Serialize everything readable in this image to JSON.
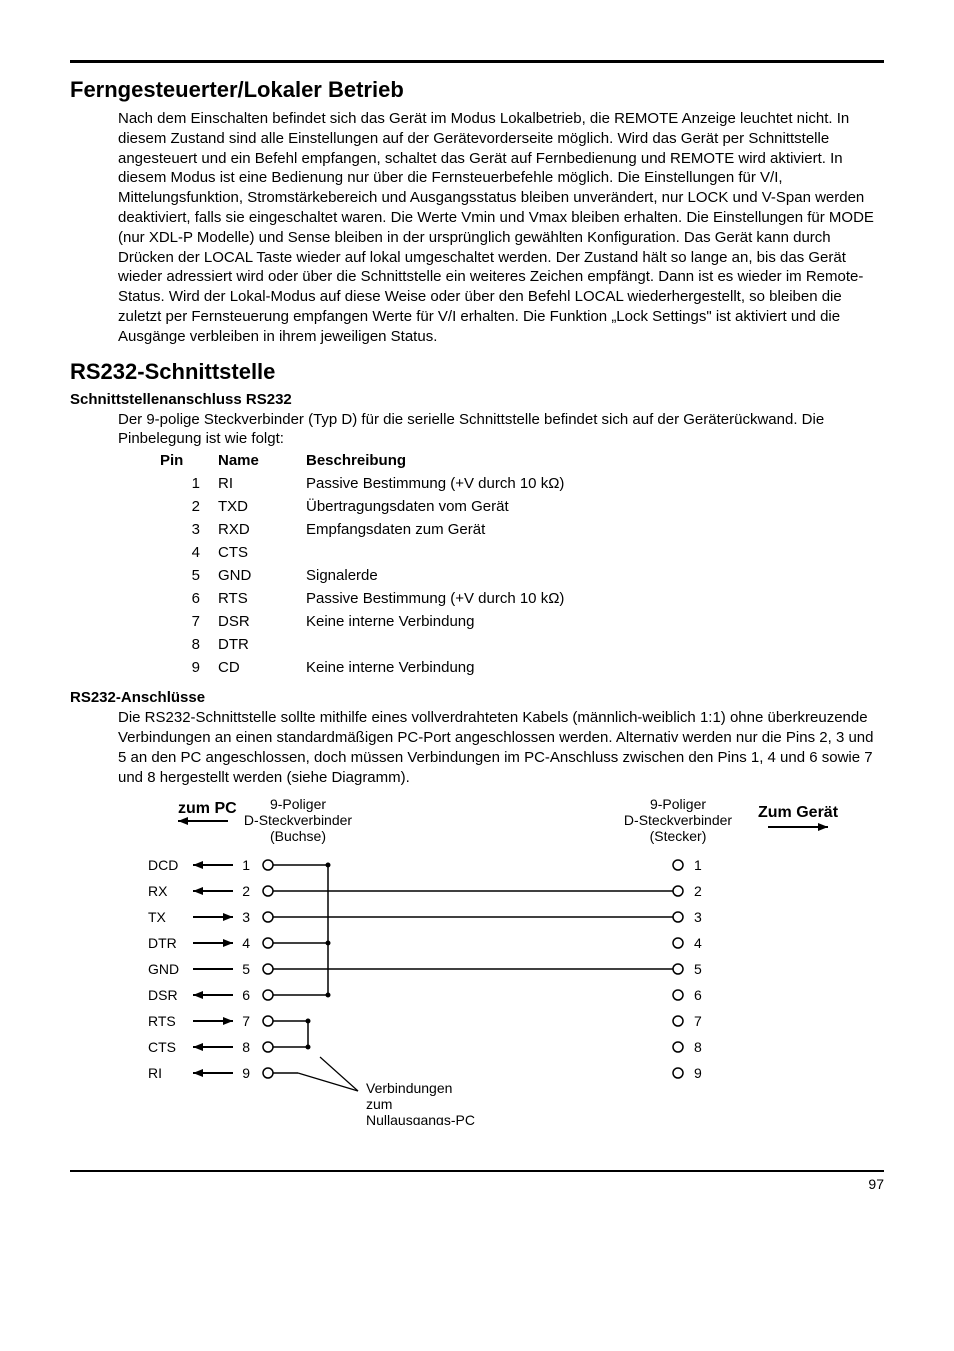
{
  "page": {
    "number": "97"
  },
  "section1": {
    "title": "Ferngesteuerter/Lokaler Betrieb",
    "body": "Nach dem Einschalten befindet sich das Gerät im Modus Lokalbetrieb, die REMOTE Anzeige leuchtet nicht. In diesem Zustand sind alle Einstellungen auf der Gerätevorderseite möglich. Wird das Gerät per Schnittstelle angesteuert und ein Befehl empfangen, schaltet das Gerät auf Fernbedienung und REMOTE wird aktiviert. In diesem Modus ist eine Bedienung nur über die Fernsteuerbefehle möglich. Die Einstellungen für V/I, Mittelungsfunktion, Stromstärkebereich und Ausgangsstatus bleiben unverändert, nur LOCK und V-Span werden deaktiviert, falls sie eingeschaltet waren. Die Werte Vmin und Vmax bleiben erhalten. Die Einstellungen für MODE (nur XDL-P Modelle) und Sense bleiben in der ursprünglich gewählten Konfiguration. Das Gerät kann durch Drücken der LOCAL Taste wieder auf lokal umgeschaltet werden. Der Zustand hält so lange an, bis das Gerät wieder adressiert wird oder über die Schnittstelle ein weiteres Zeichen empfängt. Dann ist es wieder im Remote-Status. Wird der Lokal-Modus auf diese Weise oder über den Befehl LOCAL wiederhergestellt, so bleiben die zuletzt per Fernsteuerung empfangen Werte für V/I erhalten. Die Funktion „Lock Settings\" ist aktiviert und die Ausgänge verbleiben in ihrem jeweiligen Status."
  },
  "section2": {
    "title": "RS232-Schnittstelle",
    "sub1": {
      "heading": "Schnittstellenanschluss RS232",
      "body": "Der 9-polige Steckverbinder (Typ D) für die serielle Schnittstelle befindet sich auf der Geräterückwand. Die Pinbelegung ist wie folgt:"
    },
    "pinTable": {
      "headers": {
        "pin": "Pin",
        "name": "Name",
        "desc": "Beschreibung"
      },
      "rows": [
        {
          "pin": "1",
          "name": "RI",
          "desc": "Passive Bestimmung (+V durch 10 kΩ)"
        },
        {
          "pin": "2",
          "name": "TXD",
          "desc": "Übertragungsdaten vom Gerät"
        },
        {
          "pin": "3",
          "name": "RXD",
          "desc": "Empfangsdaten zum Gerät"
        },
        {
          "pin": "4",
          "name": "CTS",
          "desc": ""
        },
        {
          "pin": "5",
          "name": "GND",
          "desc": "Signalerde"
        },
        {
          "pin": "6",
          "name": "RTS",
          "desc": "Passive Bestimmung (+V durch 10 kΩ)"
        },
        {
          "pin": "7",
          "name": "DSR",
          "desc": "Keine interne Verbindung"
        },
        {
          "pin": "8",
          "name": "DTR",
          "desc": ""
        },
        {
          "pin": "9",
          "name": "CD",
          "desc": "Keine interne Verbindung"
        }
      ]
    },
    "sub2": {
      "heading": "RS232-Anschlüsse",
      "body": "Die RS232-Schnittstelle sollte mithilfe eines vollverdrahteten Kabels (männlich-weiblich 1:1) ohne überkreuzende Verbindungen an einen standardmäßigen PC-Port angeschlossen werden. Alternativ werden nur die Pins 2, 3 und 5 an den PC angeschlossen, doch müssen Verbindungen im PC-Anschluss zwischen den Pins 1, 4 und 6 sowie 7 und 8 hergestellt werden (siehe Diagramm)."
    }
  },
  "diagram": {
    "left": {
      "title": "zum PC",
      "sub1": "9-Poliger",
      "sub2": "D-Steckverbinder",
      "sub3": "(Buchse)",
      "signals": [
        "DCD",
        "RX",
        "TX",
        "DTR",
        "GND",
        "DSR",
        "RTS",
        "CTS",
        "RI"
      ]
    },
    "right": {
      "title": "Zum Gerät",
      "sub1": "9-Poliger",
      "sub2": "D-Steckverbinder",
      "sub3": "(Stecker)"
    },
    "loopNote1": "Verbindungen",
    "loopNote2": "zum",
    "loopNote3": "Nullausgangs-PC",
    "pinNumbers": [
      "1",
      "2",
      "3",
      "4",
      "5",
      "6",
      "7",
      "8",
      "9"
    ],
    "colors": {
      "line": "#000000",
      "fill_white": "#ffffff"
    },
    "layout": {
      "rowSpacing": 26,
      "startY": 70,
      "pcPinX": 150,
      "devicePinX": 560,
      "signalLabelX": 30,
      "pinNumLeftX": 132,
      "pinNumRightX": 576
    }
  }
}
